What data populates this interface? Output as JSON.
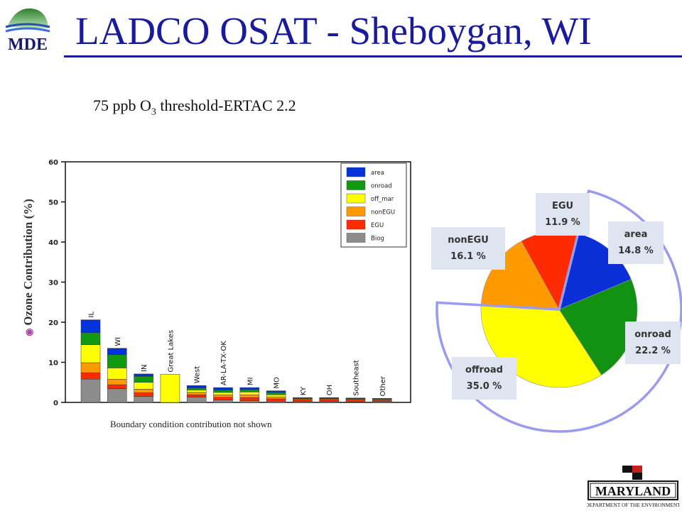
{
  "slide": {
    "title": "LADCO OSAT - Sheboygan, WI",
    "subtitle_pre": "75 ppb O",
    "subtitle_sub": "3",
    "subtitle_post": " threshold-ERTAC 2.2",
    "footnote": "Boundary condition contribution not shown",
    "logo_text": "MDE",
    "md_logo_text": "MARYLAND",
    "md_logo_subtext": "DEPARTMENT OF THE ENVIRONMENT",
    "colors": {
      "title": "#1a1a9c",
      "highlight": "#9a9aee"
    }
  },
  "chart_data": [
    {
      "type": "bar",
      "stacked": true,
      "ylabel": "Ozone Contribution (%)",
      "ylim": [
        0,
        60
      ],
      "yticks": [
        0,
        10,
        20,
        30,
        40,
        50,
        60
      ],
      "categories": [
        "IL",
        "WI",
        "IN",
        "Great Lakes",
        "West",
        "AR-LA-TX-OK",
        "MI",
        "MO",
        "KY",
        "OH",
        "Southeast",
        "Other"
      ],
      "series": [
        {
          "name": "Biog",
          "color": "#8c8c8c",
          "values": [
            5.8,
            3.4,
            1.5,
            0,
            1.3,
            0.6,
            0.4,
            0.3,
            0.2,
            0.2,
            0.1,
            0.2
          ]
        },
        {
          "name": "EGU",
          "color": "#ff2a00",
          "values": [
            1.6,
            1.0,
            0.9,
            0,
            0.6,
            0.7,
            0.8,
            0.6,
            0.5,
            0.5,
            0.5,
            0.3
          ]
        },
        {
          "name": "nonEGU",
          "color": "#ff9900",
          "values": [
            2.5,
            1.4,
            0.9,
            0,
            0.6,
            0.6,
            0.7,
            0.5,
            0.2,
            0.2,
            0.2,
            0.2
          ]
        },
        {
          "name": "off_mar",
          "color": "#ffff00",
          "values": [
            4.5,
            2.8,
            1.7,
            7.0,
            0.6,
            0.6,
            0.7,
            0.5,
            0.1,
            0.1,
            0.1,
            0.1
          ]
        },
        {
          "name": "onroad",
          "color": "#119911",
          "values": [
            3.0,
            3.3,
            1.5,
            0,
            0.5,
            0.6,
            0.6,
            0.6,
            0.1,
            0.1,
            0.1,
            0.1
          ]
        },
        {
          "name": "area",
          "color": "#0033dd",
          "values": [
            3.2,
            1.6,
            0.6,
            0,
            0.6,
            0.6,
            0.5,
            0.4,
            0.1,
            0.1,
            0.1,
            0.1
          ]
        }
      ],
      "legend": {
        "position": "top-right",
        "entries": [
          {
            "name": "area",
            "color": "#0033dd"
          },
          {
            "name": "onroad",
            "color": "#119911"
          },
          {
            "name": "off_mar",
            "color": "#ffff00"
          },
          {
            "name": "nonEGU",
            "color": "#ff9900"
          },
          {
            "name": "EGU",
            "color": "#ff2a00"
          },
          {
            "name": "Biog",
            "color": "#8c8c8c"
          }
        ]
      }
    },
    {
      "type": "pie",
      "slices": [
        {
          "label": "area",
          "value": 14.8,
          "display": "14.8 %",
          "color": "#0a2fd6"
        },
        {
          "label": "onroad",
          "value": 22.2,
          "display": "22.2 %",
          "color": "#129112"
        },
        {
          "label": "offroad",
          "value": 35.0,
          "display": "35.0 %",
          "color": "#ffff00"
        },
        {
          "label": "nonEGU",
          "value": 16.1,
          "display": "16.1 %",
          "color": "#ff9900"
        },
        {
          "label": "EGU",
          "value": 11.9,
          "display": "11.9 %",
          "color": "#ff2a00"
        }
      ],
      "highlight": [
        "area",
        "onroad",
        "offroad"
      ]
    }
  ]
}
